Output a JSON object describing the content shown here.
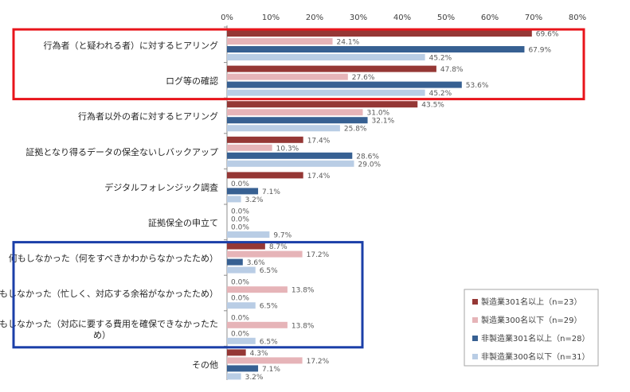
{
  "chart_data": {
    "type": "bar",
    "orientation": "horizontal",
    "xlim": [
      0,
      80
    ],
    "x_ticks": [
      "0%",
      "10%",
      "20%",
      "30%",
      "40%",
      "50%",
      "60%",
      "70%",
      "80%"
    ],
    "unit": "%",
    "categories": [
      "行為者（と疑われる者）に対するヒアリング",
      "ログ等の確認",
      "行為者以外の者に対するヒアリング",
      "証拠となり得るデータの保全ないしバックアップ",
      "デジタルフォレンジック調査",
      "証拠保全の申立て",
      "何もしなかった（何をすべきかわからなかったため）",
      "何もしなかった（忙しく、対応する余裕がなかったため）",
      "何もしなかった（対応に要する費用を確保できなかったため）",
      "その他"
    ],
    "series": [
      {
        "name": "製造業301名以上（n=23）",
        "color": "#953735",
        "values": [
          69.6,
          47.8,
          43.5,
          17.4,
          17.4,
          0.0,
          8.7,
          0.0,
          0.0,
          4.3
        ]
      },
      {
        "name": "製造業300名以下（n=29）",
        "color": "#E6B4B8",
        "values": [
          24.1,
          27.6,
          31.0,
          10.3,
          0.0,
          0.0,
          17.2,
          13.8,
          13.8,
          17.2
        ]
      },
      {
        "name": "非製造業301名以上（n=28）",
        "color": "#376092",
        "values": [
          67.9,
          53.6,
          32.1,
          28.6,
          7.1,
          0.0,
          3.6,
          0.0,
          0.0,
          7.1
        ]
      },
      {
        "name": "非製造業300名以下（n=31）",
        "color": "#B9CDE5",
        "values": [
          45.2,
          45.2,
          25.8,
          29.0,
          3.2,
          9.7,
          6.5,
          6.5,
          6.5,
          3.2
        ]
      }
    ],
    "highlight_boxes": [
      {
        "categories": [
          0,
          1
        ],
        "color": "#E8141B"
      },
      {
        "categories": [
          6,
          8
        ],
        "color": "#1B3FA8"
      }
    ],
    "legend_position": "bottom-right",
    "grid": false
  }
}
